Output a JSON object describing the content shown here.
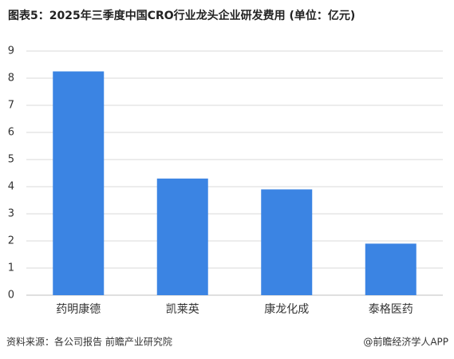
{
  "chart_data": {
    "type": "bar",
    "title": "图表5：2025年三季度中国CRO行业龙头企业研发费用 (单位：亿元)",
    "categories": [
      "药明康德",
      "凯莱英",
      "康龙化成",
      "泰格医药"
    ],
    "values": [
      8.25,
      4.3,
      3.9,
      1.9
    ],
    "color": "#3b84e3",
    "ylim": [
      0,
      9
    ],
    "yticks": [
      0,
      1,
      2,
      3,
      4,
      5,
      6,
      7,
      8,
      9
    ],
    "grid": true,
    "source": "资料来源：各公司报告 前瞻产业研究院",
    "credit": "@前瞻经济学人APP"
  }
}
